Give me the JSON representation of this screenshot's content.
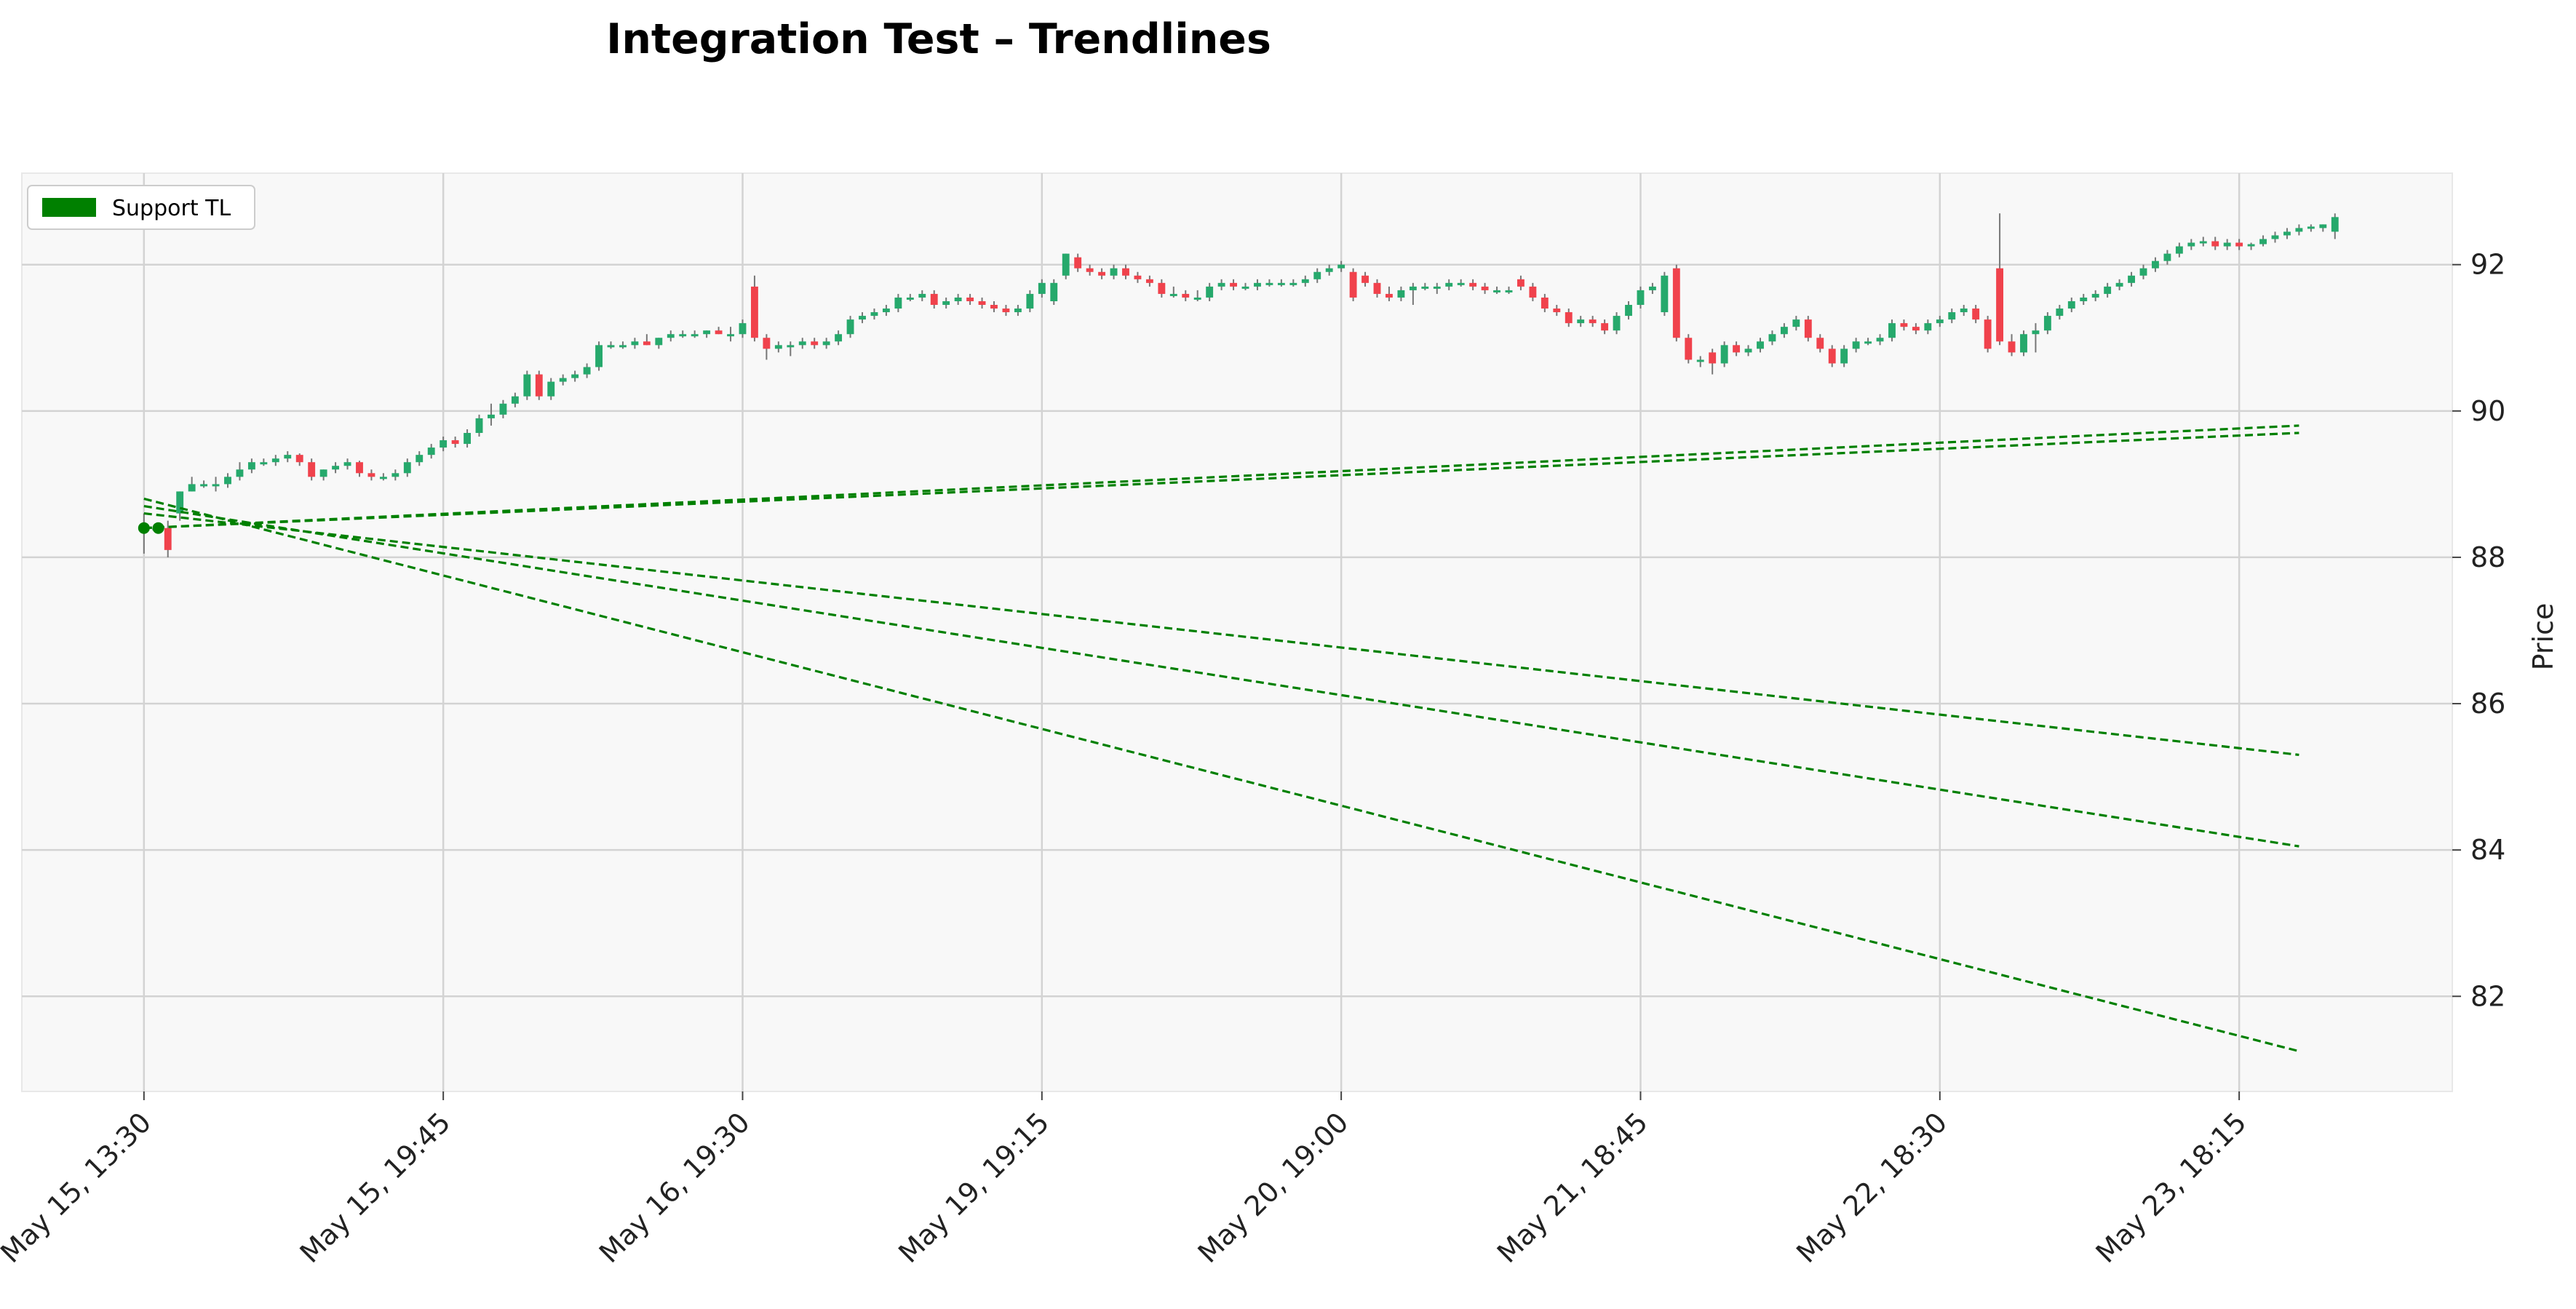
{
  "chart_data": {
    "type": "candlestick",
    "title": "Integration Test – Trendlines",
    "ylabel": "Price",
    "xlabel": "",
    "ylim": [
      80.7,
      93.25
    ],
    "yticks": [
      82,
      84,
      86,
      88,
      90,
      92
    ],
    "grid": true,
    "legend": {
      "position": "top-left",
      "entries": [
        {
          "label": "Support TL",
          "color": "#008000"
        }
      ]
    },
    "colors": {
      "up": "#26a96c",
      "down": "#f0424c",
      "trendline": "#008000",
      "plot_bg": "#f8f8f8",
      "grid": "#d3d3d3"
    },
    "x_ticks": [
      {
        "index": 0,
        "label": "May 15, 13:30"
      },
      {
        "index": 25,
        "label": "May 15, 19:45"
      },
      {
        "index": 50,
        "label": "May 16, 19:30"
      },
      {
        "index": 75,
        "label": "May 19, 19:15"
      },
      {
        "index": 100,
        "label": "May 20, 19:00"
      },
      {
        "index": 125,
        "label": "May 21, 18:45"
      },
      {
        "index": 150,
        "label": "May 22, 18:30"
      },
      {
        "index": 175,
        "label": "May 23, 18:15"
      }
    ],
    "x_range": [
      -10.2,
      192.8
    ],
    "candles": [
      [
        88.4,
        88.6,
        88.05,
        88.4
      ],
      [
        88.4,
        88.45,
        88.35,
        88.4
      ],
      [
        88.4,
        88.5,
        88.0,
        88.1
      ],
      [
        88.6,
        88.9,
        88.5,
        88.9
      ],
      [
        88.9,
        89.1,
        88.9,
        89.0
      ],
      [
        89.0,
        89.05,
        88.95,
        89.0
      ],
      [
        89.0,
        89.1,
        88.9,
        89.0
      ],
      [
        89.0,
        89.15,
        88.95,
        89.1
      ],
      [
        89.1,
        89.3,
        89.05,
        89.2
      ],
      [
        89.2,
        89.35,
        89.15,
        89.3
      ],
      [
        89.3,
        89.35,
        89.25,
        89.3
      ],
      [
        89.3,
        89.4,
        89.25,
        89.35
      ],
      [
        89.35,
        89.45,
        89.3,
        89.4
      ],
      [
        89.4,
        89.42,
        89.25,
        89.3
      ],
      [
        89.3,
        89.35,
        89.05,
        89.1
      ],
      [
        89.1,
        89.2,
        89.05,
        89.2
      ],
      [
        89.2,
        89.3,
        89.15,
        89.25
      ],
      [
        89.25,
        89.35,
        89.2,
        89.3
      ],
      [
        89.3,
        89.32,
        89.1,
        89.15
      ],
      [
        89.15,
        89.2,
        89.05,
        89.1
      ],
      [
        89.1,
        89.15,
        89.05,
        89.1
      ],
      [
        89.1,
        89.2,
        89.05,
        89.15
      ],
      [
        89.15,
        89.35,
        89.1,
        89.3
      ],
      [
        89.3,
        89.45,
        89.25,
        89.4
      ],
      [
        89.4,
        89.55,
        89.35,
        89.5
      ],
      [
        89.5,
        89.65,
        89.45,
        89.6
      ],
      [
        89.6,
        89.65,
        89.5,
        89.55
      ],
      [
        89.55,
        89.75,
        89.5,
        89.7
      ],
      [
        89.7,
        89.95,
        89.65,
        89.9
      ],
      [
        89.9,
        90.1,
        89.8,
        89.95
      ],
      [
        89.95,
        90.15,
        89.9,
        90.1
      ],
      [
        90.1,
        90.25,
        90.05,
        90.2
      ],
      [
        90.2,
        90.55,
        90.15,
        90.5
      ],
      [
        90.5,
        90.55,
        90.15,
        90.2
      ],
      [
        90.2,
        90.45,
        90.15,
        90.4
      ],
      [
        90.4,
        90.5,
        90.35,
        90.45
      ],
      [
        90.45,
        90.55,
        90.4,
        90.5
      ],
      [
        90.5,
        90.65,
        90.45,
        90.6
      ],
      [
        90.6,
        90.95,
        90.55,
        90.9
      ],
      [
        90.9,
        90.95,
        90.85,
        90.9
      ],
      [
        90.9,
        90.95,
        90.85,
        90.9
      ],
      [
        90.9,
        91.0,
        90.85,
        90.95
      ],
      [
        90.95,
        91.05,
        90.9,
        90.9
      ],
      [
        90.9,
        91.0,
        90.85,
        91.0
      ],
      [
        91.0,
        91.1,
        90.95,
        91.05
      ],
      [
        91.05,
        91.1,
        91.0,
        91.05
      ],
      [
        91.05,
        91.1,
        91.0,
        91.05
      ],
      [
        91.05,
        91.1,
        91.0,
        91.1
      ],
      [
        91.1,
        91.15,
        91.05,
        91.05
      ],
      [
        91.05,
        91.15,
        90.95,
        91.05
      ],
      [
        91.05,
        91.25,
        91.0,
        91.2
      ],
      [
        91.7,
        91.85,
        90.95,
        91.0
      ],
      [
        91.0,
        91.05,
        90.7,
        90.85
      ],
      [
        90.85,
        90.95,
        90.8,
        90.9
      ],
      [
        90.9,
        90.95,
        90.75,
        90.9
      ],
      [
        90.9,
        91.0,
        90.85,
        90.95
      ],
      [
        90.95,
        91.0,
        90.85,
        90.9
      ],
      [
        90.9,
        91.0,
        90.85,
        90.95
      ],
      [
        90.95,
        91.1,
        90.9,
        91.05
      ],
      [
        91.05,
        91.3,
        91.0,
        91.25
      ],
      [
        91.25,
        91.35,
        91.2,
        91.3
      ],
      [
        91.3,
        91.4,
        91.25,
        91.35
      ],
      [
        91.35,
        91.45,
        91.3,
        91.4
      ],
      [
        91.4,
        91.6,
        91.35,
        91.55
      ],
      [
        91.55,
        91.6,
        91.5,
        91.55
      ],
      [
        91.55,
        91.65,
        91.5,
        91.6
      ],
      [
        91.6,
        91.65,
        91.4,
        91.45
      ],
      [
        91.45,
        91.55,
        91.4,
        91.5
      ],
      [
        91.5,
        91.6,
        91.45,
        91.55
      ],
      [
        91.55,
        91.6,
        91.45,
        91.5
      ],
      [
        91.5,
        91.55,
        91.4,
        91.45
      ],
      [
        91.45,
        91.5,
        91.35,
        91.4
      ],
      [
        91.4,
        91.45,
        91.3,
        91.35
      ],
      [
        91.35,
        91.45,
        91.3,
        91.4
      ],
      [
        91.4,
        91.65,
        91.35,
        91.6
      ],
      [
        91.6,
        91.8,
        91.55,
        91.75
      ],
      [
        91.5,
        91.8,
        91.45,
        91.75
      ],
      [
        91.85,
        92.15,
        91.8,
        92.15
      ],
      [
        92.1,
        92.15,
        91.9,
        91.95
      ],
      [
        91.95,
        92.0,
        91.85,
        91.9
      ],
      [
        91.9,
        91.95,
        91.8,
        91.85
      ],
      [
        91.85,
        92.0,
        91.8,
        91.95
      ],
      [
        91.95,
        92.0,
        91.8,
        91.85
      ],
      [
        91.85,
        91.9,
        91.75,
        91.8
      ],
      [
        91.8,
        91.85,
        91.7,
        91.75
      ],
      [
        91.75,
        91.8,
        91.55,
        91.6
      ],
      [
        91.6,
        91.7,
        91.55,
        91.6
      ],
      [
        91.6,
        91.65,
        91.5,
        91.55
      ],
      [
        91.55,
        91.65,
        91.5,
        91.55
      ],
      [
        91.55,
        91.75,
        91.5,
        91.7
      ],
      [
        91.7,
        91.8,
        91.65,
        91.75
      ],
      [
        91.75,
        91.8,
        91.65,
        91.7
      ],
      [
        91.7,
        91.75,
        91.65,
        91.7
      ],
      [
        91.7,
        91.8,
        91.65,
        91.75
      ],
      [
        91.75,
        91.8,
        91.7,
        91.75
      ],
      [
        91.75,
        91.8,
        91.7,
        91.75
      ],
      [
        91.75,
        91.8,
        91.7,
        91.75
      ],
      [
        91.75,
        91.85,
        91.7,
        91.8
      ],
      [
        91.8,
        91.95,
        91.75,
        91.9
      ],
      [
        91.9,
        92.0,
        91.85,
        91.95
      ],
      [
        91.95,
        92.05,
        91.9,
        92.0
      ],
      [
        91.9,
        91.95,
        91.5,
        91.55
      ],
      [
        91.85,
        91.9,
        91.7,
        91.75
      ],
      [
        91.75,
        91.8,
        91.55,
        91.6
      ],
      [
        91.6,
        91.7,
        91.5,
        91.55
      ],
      [
        91.55,
        91.7,
        91.5,
        91.65
      ],
      [
        91.65,
        91.75,
        91.45,
        91.7
      ],
      [
        91.7,
        91.75,
        91.65,
        91.7
      ],
      [
        91.7,
        91.75,
        91.6,
        91.7
      ],
      [
        91.7,
        91.8,
        91.65,
        91.75
      ],
      [
        91.75,
        91.8,
        91.7,
        91.75
      ],
      [
        91.75,
        91.8,
        91.65,
        91.7
      ],
      [
        91.7,
        91.75,
        91.6,
        91.65
      ],
      [
        91.65,
        91.7,
        91.6,
        91.65
      ],
      [
        91.65,
        91.7,
        91.6,
        91.65
      ],
      [
        91.8,
        91.85,
        91.65,
        91.7
      ],
      [
        91.7,
        91.75,
        91.5,
        91.55
      ],
      [
        91.55,
        91.6,
        91.35,
        91.4
      ],
      [
        91.4,
        91.45,
        91.3,
        91.35
      ],
      [
        91.35,
        91.4,
        91.15,
        91.2
      ],
      [
        91.2,
        91.3,
        91.15,
        91.25
      ],
      [
        91.25,
        91.3,
        91.15,
        91.2
      ],
      [
        91.2,
        91.25,
        91.05,
        91.1
      ],
      [
        91.1,
        91.35,
        91.05,
        91.3
      ],
      [
        91.3,
        91.5,
        91.25,
        91.45
      ],
      [
        91.45,
        91.7,
        91.4,
        91.65
      ],
      [
        91.65,
        91.75,
        91.6,
        91.7
      ],
      [
        91.35,
        91.9,
        91.3,
        91.85
      ],
      [
        91.95,
        92.0,
        90.95,
        91.0
      ],
      [
        91.0,
        91.05,
        90.65,
        90.7
      ],
      [
        90.7,
        90.75,
        90.6,
        90.7
      ],
      [
        90.8,
        90.85,
        90.5,
        90.65
      ],
      [
        90.65,
        90.95,
        90.6,
        90.9
      ],
      [
        90.9,
        90.95,
        90.75,
        90.8
      ],
      [
        90.8,
        90.9,
        90.75,
        90.85
      ],
      [
        90.85,
        91.0,
        90.8,
        90.95
      ],
      [
        90.95,
        91.1,
        90.9,
        91.05
      ],
      [
        91.05,
        91.2,
        91.0,
        91.15
      ],
      [
        91.15,
        91.3,
        91.1,
        91.25
      ],
      [
        91.25,
        91.3,
        90.95,
        91.0
      ],
      [
        91.0,
        91.05,
        90.8,
        90.85
      ],
      [
        90.85,
        90.9,
        90.6,
        90.65
      ],
      [
        90.65,
        90.9,
        90.6,
        90.85
      ],
      [
        90.85,
        91.0,
        90.8,
        90.95
      ],
      [
        90.95,
        91.0,
        90.9,
        90.95
      ],
      [
        90.95,
        91.05,
        90.9,
        91.0
      ],
      [
        91.0,
        91.25,
        90.95,
        91.2
      ],
      [
        91.2,
        91.25,
        91.1,
        91.15
      ],
      [
        91.15,
        91.2,
        91.05,
        91.1
      ],
      [
        91.1,
        91.25,
        91.05,
        91.2
      ],
      [
        91.2,
        91.3,
        91.15,
        91.25
      ],
      [
        91.25,
        91.4,
        91.2,
        91.35
      ],
      [
        91.35,
        91.45,
        91.3,
        91.4
      ],
      [
        91.4,
        91.45,
        91.2,
        91.25
      ],
      [
        91.25,
        91.3,
        90.8,
        90.85
      ],
      [
        91.95,
        92.7,
        90.9,
        90.95
      ],
      [
        90.95,
        91.05,
        90.75,
        90.8
      ],
      [
        90.8,
        91.1,
        90.75,
        91.05
      ],
      [
        91.05,
        91.2,
        90.8,
        91.1
      ],
      [
        91.1,
        91.35,
        91.05,
        91.3
      ],
      [
        91.3,
        91.45,
        91.25,
        91.4
      ],
      [
        91.4,
        91.55,
        91.35,
        91.5
      ],
      [
        91.5,
        91.6,
        91.45,
        91.55
      ],
      [
        91.55,
        91.65,
        91.5,
        91.6
      ],
      [
        91.6,
        91.75,
        91.55,
        91.7
      ],
      [
        91.7,
        91.8,
        91.65,
        91.75
      ],
      [
        91.75,
        91.9,
        91.7,
        91.85
      ],
      [
        91.85,
        92.0,
        91.8,
        91.95
      ],
      [
        91.95,
        92.1,
        91.9,
        92.05
      ],
      [
        92.05,
        92.2,
        92.0,
        92.15
      ],
      [
        92.15,
        92.3,
        92.1,
        92.25
      ],
      [
        92.25,
        92.35,
        92.2,
        92.3
      ],
      [
        92.3,
        92.38,
        92.25,
        92.32
      ],
      [
        92.32,
        92.38,
        92.2,
        92.25
      ],
      [
        92.25,
        92.35,
        92.2,
        92.3
      ],
      [
        92.3,
        92.35,
        92.2,
        92.25
      ],
      [
        92.25,
        92.3,
        92.2,
        92.28
      ],
      [
        92.28,
        92.4,
        92.25,
        92.35
      ],
      [
        92.35,
        92.45,
        92.3,
        92.4
      ],
      [
        92.4,
        92.5,
        92.35,
        92.45
      ],
      [
        92.45,
        92.55,
        92.4,
        92.5
      ],
      [
        92.5,
        92.55,
        92.45,
        92.52
      ],
      [
        92.5,
        92.55,
        92.45,
        92.55
      ],
      [
        92.45,
        92.7,
        92.35,
        92.65
      ]
    ],
    "trendlines": [
      {
        "x": [
          0,
          180
        ],
        "y": [
          88.4,
          89.8
        ]
      },
      {
        "x": [
          0,
          180
        ],
        "y": [
          88.4,
          89.7
        ]
      },
      {
        "x": [
          0,
          180
        ],
        "y": [
          88.6,
          85.3
        ]
      },
      {
        "x": [
          0,
          180
        ],
        "y": [
          88.7,
          84.05
        ]
      },
      {
        "x": [
          0,
          180
        ],
        "y": [
          88.8,
          81.25
        ]
      }
    ]
  }
}
